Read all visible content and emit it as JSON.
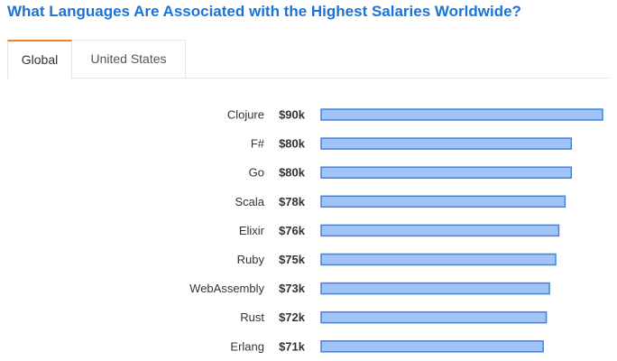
{
  "tabs": [
    {
      "label": "Global",
      "active": true
    },
    {
      "label": "United States",
      "active": false
    }
  ],
  "colors": {
    "title": "#1a73d8",
    "bar_fill": "#9fc4f5",
    "bar_stroke": "#3d84e6",
    "tab_accent": "#f48024"
  },
  "chart_data": {
    "type": "bar",
    "orientation": "horizontal",
    "title": "What Languages Are Associated with the Highest Salaries Worldwide?",
    "categories": [
      "Clojure",
      "F#",
      "Go",
      "Scala",
      "Elixir",
      "Ruby",
      "WebAssembly",
      "Rust",
      "Erlang"
    ],
    "values": [
      90,
      80,
      80,
      78,
      76,
      75,
      73,
      72,
      71
    ],
    "value_labels": [
      "$90k",
      "$80k",
      "$80k",
      "$78k",
      "$76k",
      "$75k",
      "$73k",
      "$72k",
      "$71k"
    ],
    "unit": "$k",
    "xlim": [
      0,
      90
    ],
    "grid": false,
    "legend": "none"
  }
}
